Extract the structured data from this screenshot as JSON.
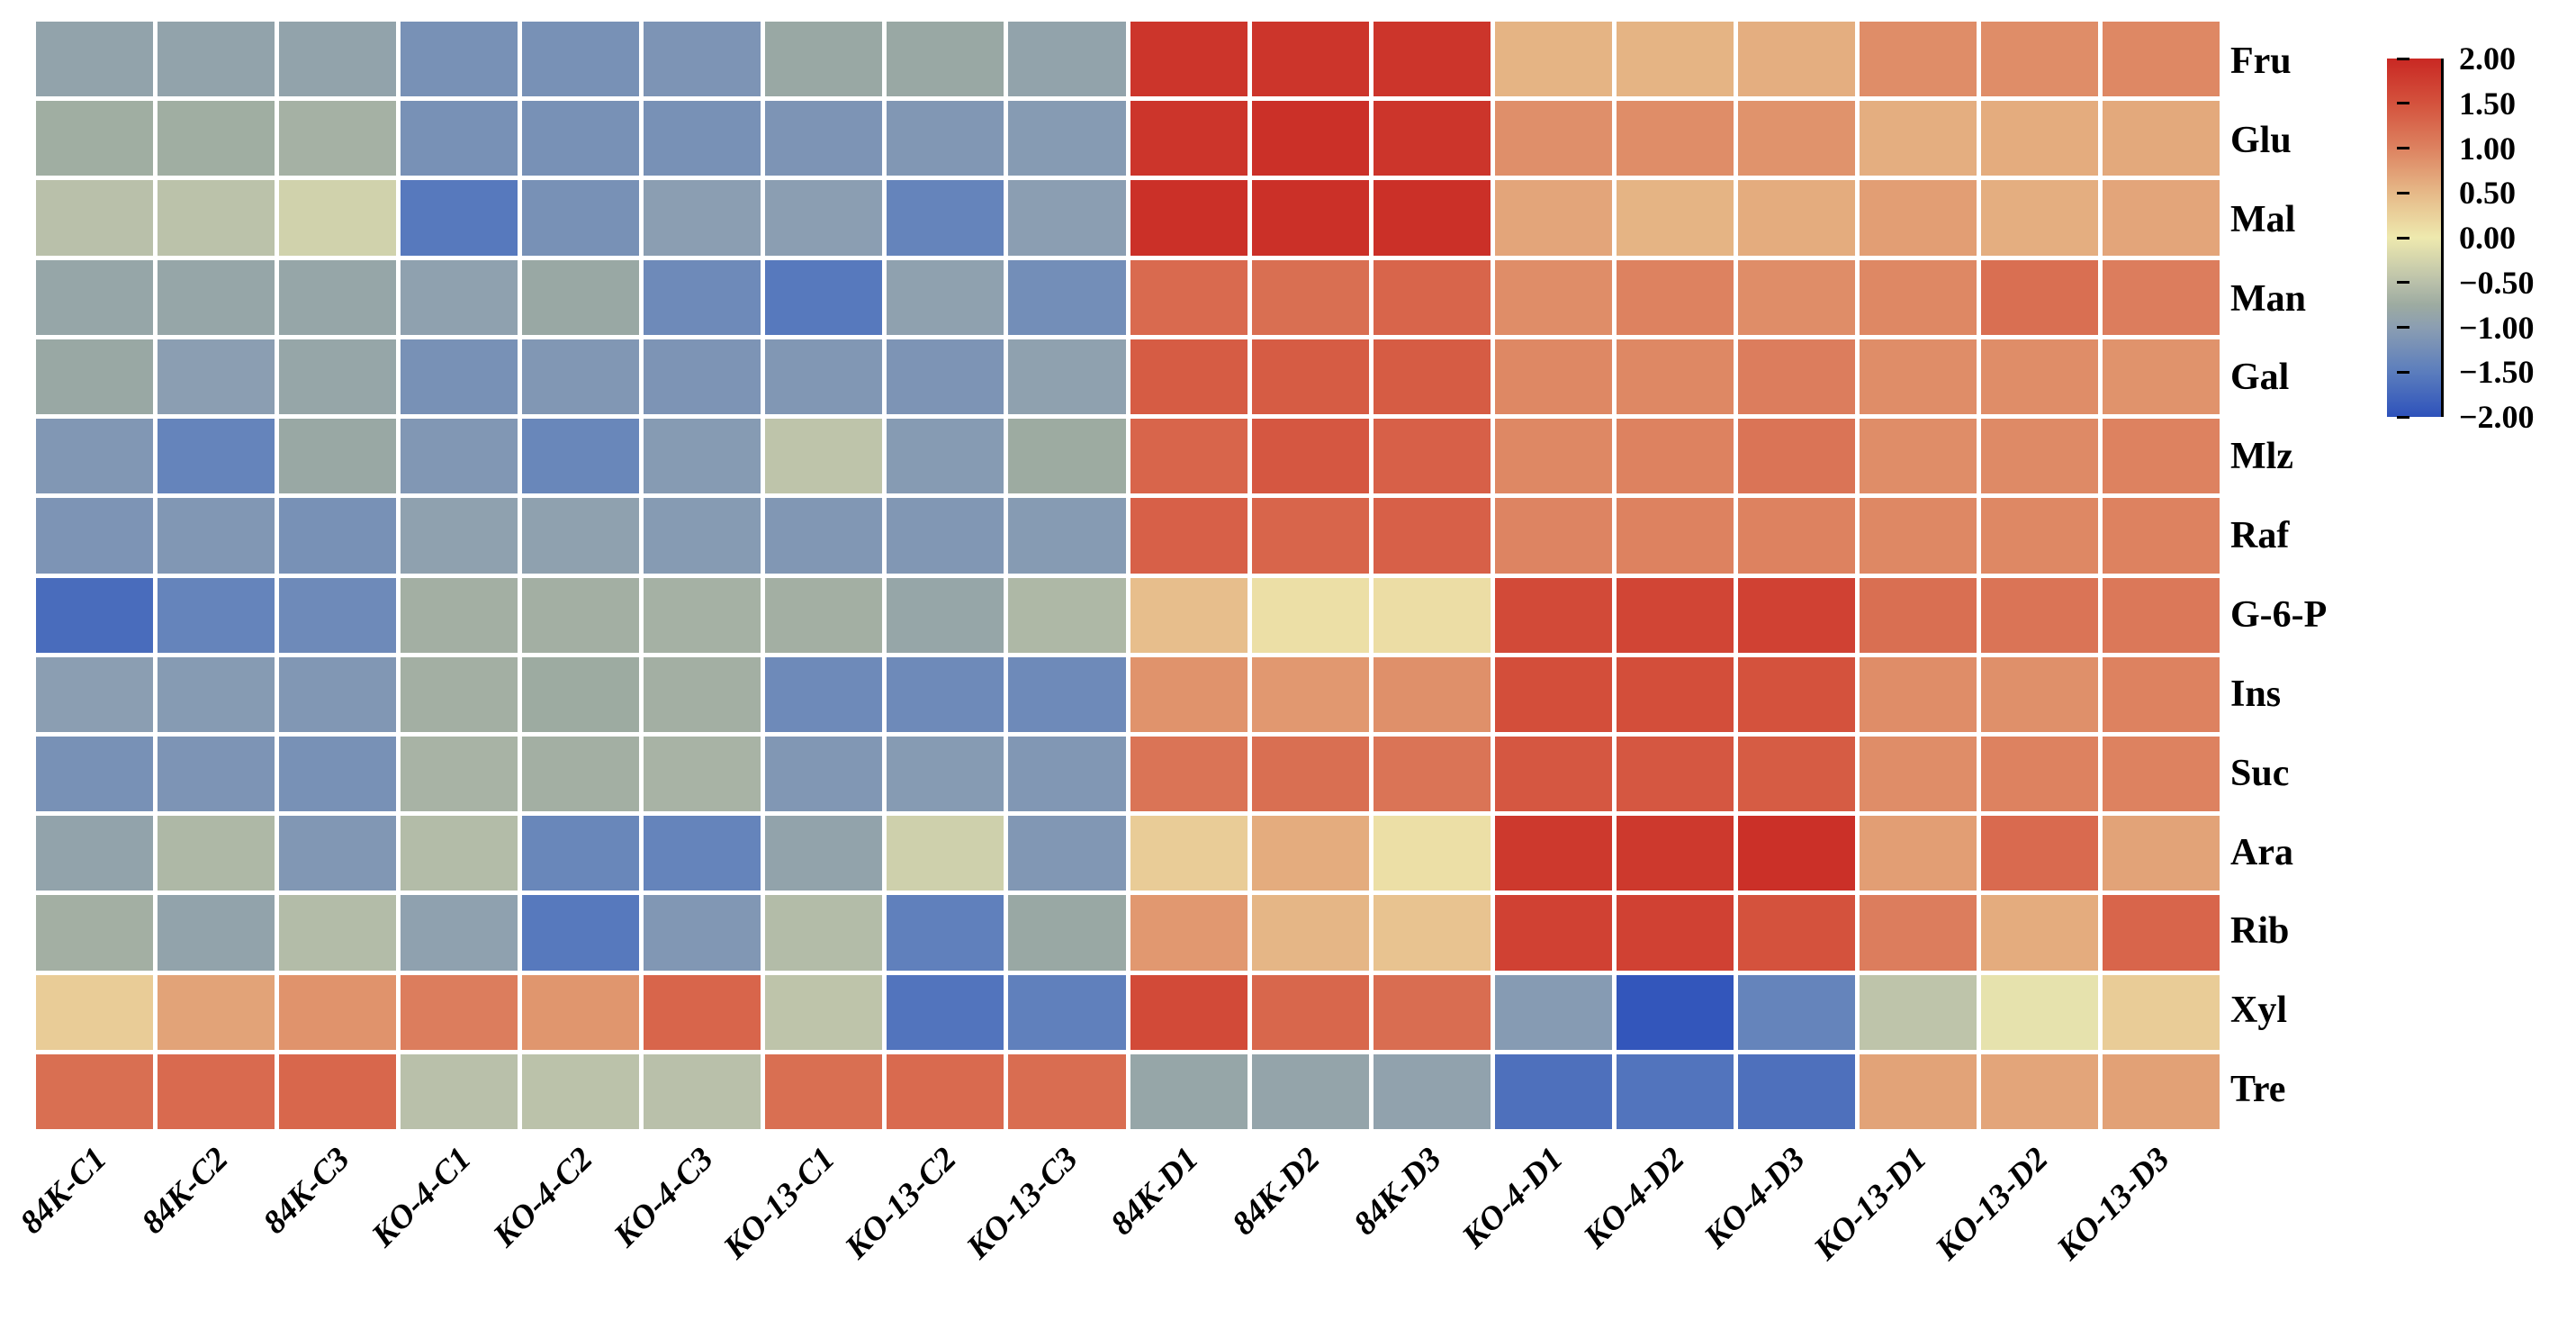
{
  "figure": {
    "background_color": "#ffffff",
    "grid_line_color": "#ffffff"
  },
  "chart_data": {
    "type": "heatmap",
    "title": "",
    "xlabel": "",
    "ylabel": "",
    "legend_position": "right",
    "grid": "white-gaps-between-cells",
    "columns": [
      "84K-C1",
      "84K-C2",
      "84K-C3",
      "KO-4-C1",
      "KO-4-C2",
      "KO-4-C3",
      "KO-13-C1",
      "KO-13-C2",
      "KO-13-C3",
      "84K-D1",
      "84K-D2",
      "84K-D3",
      "KO-4-D1",
      "KO-4-D2",
      "KO-4-D3",
      "KO-13-D1",
      "KO-13-D2",
      "KO-13-D3"
    ],
    "rows": [
      "Fru",
      "Glu",
      "Mal",
      "Man",
      "Gal",
      "Mlz",
      "Raf",
      "G-6-P",
      "Ins",
      "Suc",
      "Ara",
      "Rib",
      "Xyl",
      "Tre"
    ],
    "values": [
      [
        -0.9,
        -0.9,
        -0.9,
        -1.2,
        -1.2,
        -1.15,
        -0.8,
        -0.8,
        -0.9,
        1.85,
        1.85,
        1.85,
        0.55,
        0.55,
        0.6,
        0.9,
        0.9,
        0.95
      ],
      [
        -0.72,
        -0.72,
        -0.68,
        -1.2,
        -1.2,
        -1.2,
        -1.15,
        -1.1,
        -1.05,
        1.85,
        1.9,
        1.85,
        0.88,
        0.9,
        0.85,
        0.6,
        0.62,
        0.65
      ],
      [
        -0.5,
        -0.48,
        -0.28,
        -1.55,
        -1.2,
        -1.0,
        -1.0,
        -1.4,
        -1.0,
        1.9,
        1.9,
        1.9,
        0.68,
        0.55,
        0.62,
        0.75,
        0.6,
        0.68
      ],
      [
        -0.85,
        -0.85,
        -0.85,
        -0.95,
        -0.8,
        -1.3,
        -1.55,
        -0.95,
        -1.25,
        1.25,
        1.2,
        1.3,
        0.9,
        1.0,
        0.9,
        0.95,
        1.2,
        1.05
      ],
      [
        -0.8,
        -1.0,
        -0.85,
        -1.2,
        -1.1,
        -1.15,
        -1.1,
        -1.15,
        -0.95,
        1.4,
        1.4,
        1.4,
        0.95,
        0.95,
        1.05,
        0.9,
        0.9,
        0.85
      ],
      [
        -1.1,
        -1.4,
        -0.8,
        -1.1,
        -1.35,
        -1.05,
        -0.45,
        -1.05,
        -0.75,
        1.3,
        1.45,
        1.35,
        0.95,
        1.0,
        1.15,
        0.9,
        0.93,
        1.0
      ],
      [
        -1.15,
        -1.1,
        -1.2,
        -0.95,
        -0.95,
        -1.05,
        -1.1,
        -1.1,
        -1.05,
        1.35,
        1.3,
        1.35,
        0.98,
        1.0,
        1.0,
        0.95,
        0.95,
        1.0
      ],
      [
        -1.7,
        -1.4,
        -1.3,
        -0.7,
        -0.7,
        -0.68,
        -0.7,
        -0.85,
        -0.6,
        0.45,
        0.1,
        0.12,
        1.6,
        1.65,
        1.7,
        1.2,
        1.15,
        1.1
      ],
      [
        -1.0,
        -1.05,
        -1.1,
        -0.7,
        -0.75,
        -0.7,
        -1.3,
        -1.3,
        -1.3,
        0.85,
        0.8,
        0.87,
        1.55,
        1.55,
        1.5,
        0.9,
        0.87,
        1.0
      ],
      [
        -1.2,
        -1.15,
        -1.2,
        -0.65,
        -0.7,
        -0.65,
        -1.1,
        -1.05,
        -1.1,
        1.15,
        1.2,
        1.15,
        1.45,
        1.45,
        1.4,
        0.9,
        1.0,
        1.0
      ],
      [
        -0.9,
        -0.6,
        -1.1,
        -0.55,
        -1.35,
        -1.4,
        -0.9,
        -0.3,
        -1.1,
        0.3,
        0.62,
        0.1,
        1.8,
        1.8,
        1.9,
        0.75,
        1.25,
        0.7
      ],
      [
        -0.7,
        -0.9,
        -0.55,
        -0.95,
        -1.55,
        -1.1,
        -0.55,
        -1.45,
        -0.8,
        0.8,
        0.53,
        0.4,
        1.7,
        1.7,
        1.5,
        1.05,
        0.62,
        1.3
      ],
      [
        0.3,
        0.7,
        0.85,
        1.05,
        0.82,
        1.3,
        -0.45,
        -1.6,
        -1.45,
        1.6,
        1.28,
        1.22,
        -1.05,
        -1.95,
        -1.4,
        -0.45,
        -0.08,
        0.3
      ],
      [
        1.2,
        1.25,
        1.28,
        -0.5,
        -0.48,
        -0.5,
        1.2,
        1.25,
        1.22,
        -0.85,
        -0.88,
        -0.92,
        -1.65,
        -1.6,
        -1.65,
        0.7,
        0.68,
        0.72
      ]
    ],
    "value_range": [
      -2.0,
      2.0
    ],
    "color_scale": [
      [
        -2.0,
        "#2e52bb"
      ],
      [
        -1.5,
        "#5b7dbd"
      ],
      [
        -1.0,
        "#8b9eb2"
      ],
      [
        -0.75,
        "#9daba1"
      ],
      [
        -0.5,
        "#b9c0aa"
      ],
      [
        0.0,
        "#eee9ae"
      ],
      [
        0.5,
        "#e6b988"
      ],
      [
        1.0,
        "#dd8260"
      ],
      [
        1.5,
        "#d4523d"
      ],
      [
        2.0,
        "#c92823"
      ]
    ],
    "colorbar": {
      "min": -2.0,
      "max": 2.0,
      "tick_values": [
        2.0,
        1.5,
        1.0,
        0.5,
        0.0,
        -0.5,
        -1.0,
        -1.5,
        -2.0
      ],
      "tick_labels": [
        "2.00",
        "1.50",
        "1.00",
        "0.50",
        "0.00",
        "−0.50",
        "−1.00",
        "−1.50",
        "−2.00"
      ]
    }
  }
}
